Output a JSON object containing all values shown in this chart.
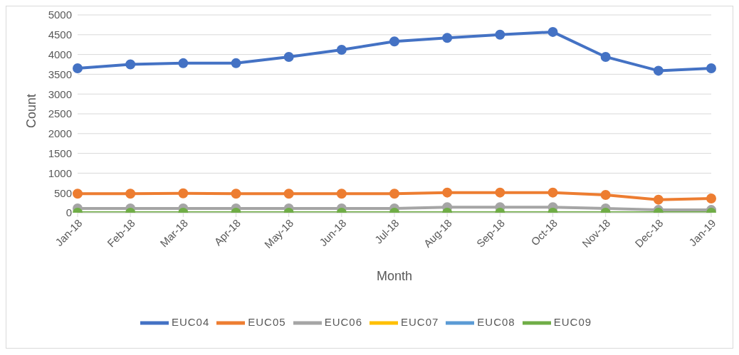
{
  "chart_data": {
    "type": "line",
    "xlabel": "Month",
    "ylabel": "Count",
    "categories": [
      "Jan-18",
      "Feb-18",
      "Mar-18",
      "Apr-18",
      "May-18",
      "Jun-18",
      "Jul-18",
      "Aug-18",
      "Sep-18",
      "Oct-18",
      "Nov-18",
      "Dec-18",
      "Jan-19"
    ],
    "series": [
      {
        "name": "EUC04",
        "color": "#4472c4",
        "values": [
          3650,
          3750,
          3780,
          3780,
          3940,
          4120,
          4330,
          4420,
          4500,
          4570,
          3940,
          3590,
          3650
        ]
      },
      {
        "name": "EUC05",
        "color": "#ed7d31",
        "values": [
          480,
          480,
          490,
          480,
          480,
          480,
          480,
          510,
          510,
          510,
          450,
          330,
          360
        ]
      },
      {
        "name": "EUC06",
        "color": "#a5a5a5",
        "values": [
          110,
          110,
          110,
          110,
          110,
          110,
          110,
          140,
          140,
          140,
          110,
          70,
          70
        ]
      },
      {
        "name": "EUC07",
        "color": "#ffc000",
        "values": [
          null,
          null,
          null,
          null,
          null,
          null,
          null,
          null,
          null,
          null,
          null,
          null,
          null
        ]
      },
      {
        "name": "EUC08",
        "color": "#5b9bd5",
        "values": [
          null,
          null,
          null,
          null,
          null,
          null,
          null,
          null,
          null,
          null,
          null,
          null,
          null
        ]
      },
      {
        "name": "EUC09",
        "color": "#70ad47",
        "values": [
          0,
          0,
          0,
          0,
          0,
          0,
          0,
          0,
          0,
          0,
          0,
          0,
          0
        ]
      }
    ],
    "ylim": [
      0,
      5000
    ],
    "yticks": [
      0,
      500,
      1000,
      1500,
      2000,
      2500,
      3000,
      3500,
      4000,
      4500,
      5000
    ],
    "grid": "y",
    "legend": "bottom",
    "marker": "circle",
    "line_style": "solid"
  }
}
